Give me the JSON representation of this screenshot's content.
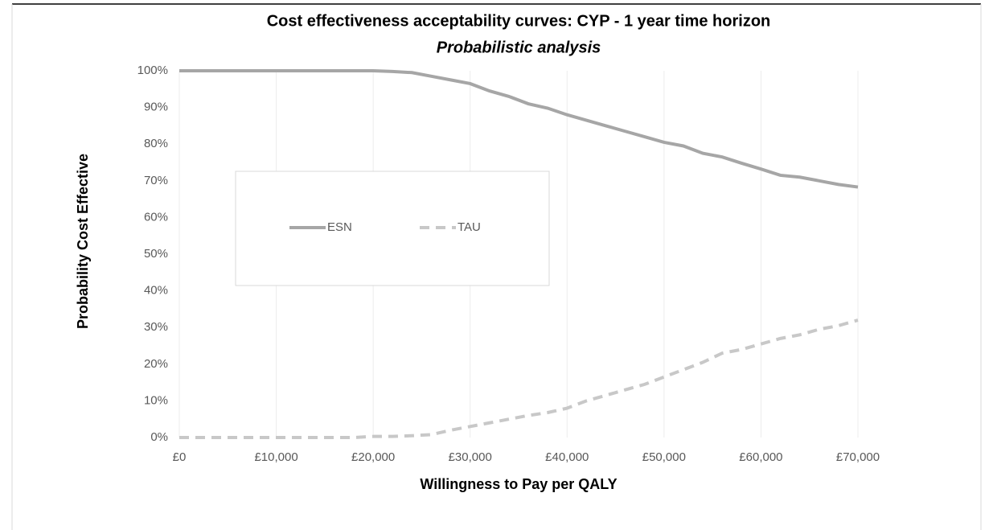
{
  "chart_data": {
    "type": "line",
    "title": "Cost effectiveness acceptability curves: CYP - 1 year time horizon",
    "subtitle": "Probabilistic analysis",
    "x_label": "Willingness to Pay per QALY",
    "y_label": "Probability Cost Effective",
    "x": [
      0,
      2000,
      4000,
      6000,
      8000,
      10000,
      12000,
      14000,
      16000,
      18000,
      20000,
      22000,
      24000,
      26000,
      28000,
      30000,
      32000,
      34000,
      36000,
      38000,
      40000,
      42000,
      44000,
      46000,
      48000,
      50000,
      52000,
      54000,
      56000,
      58000,
      60000,
      62000,
      64000,
      66000,
      68000,
      70000
    ],
    "series": [
      {
        "name": "ESN",
        "color": "#a6a6a6",
        "dash": false,
        "values": [
          100,
          100,
          100,
          100,
          100,
          100,
          100,
          100,
          100,
          100,
          100,
          99.8,
          99.5,
          98.5,
          97.5,
          96.5,
          94.5,
          93,
          91,
          89.8,
          88,
          86.5,
          85,
          83.5,
          82,
          80.5,
          79.5,
          77.5,
          76.5,
          74.8,
          73.2,
          71.5,
          71,
          70,
          69,
          68.3
        ]
      },
      {
        "name": "TAU",
        "color": "#c8c8c8",
        "dash": true,
        "values": [
          0,
          0,
          0,
          0,
          0,
          0,
          0,
          0,
          0,
          0,
          0.3,
          0.3,
          0.5,
          0.8,
          2,
          3,
          4,
          5,
          6,
          6.8,
          8,
          10,
          11.5,
          13,
          14.5,
          16.5,
          18.5,
          20.5,
          23,
          24,
          25.5,
          27,
          28,
          29.5,
          30.5,
          32
        ]
      }
    ],
    "xlim": [
      0,
      70000
    ],
    "xticks": [
      {
        "value": 0,
        "label": "£0"
      },
      {
        "value": 10000,
        "label": "£10,000"
      },
      {
        "value": 20000,
        "label": "£20,000"
      },
      {
        "value": 30000,
        "label": "£30,000"
      },
      {
        "value": 40000,
        "label": "£40,000"
      },
      {
        "value": 50000,
        "label": "£50,000"
      },
      {
        "value": 60000,
        "label": "£60,000"
      },
      {
        "value": 70000,
        "label": "£70,000"
      }
    ],
    "ylim": [
      0,
      100
    ],
    "yticks": [
      {
        "value": 0,
        "label": "0%"
      },
      {
        "value": 10,
        "label": "10%"
      },
      {
        "value": 20,
        "label": "20%"
      },
      {
        "value": 30,
        "label": "30%"
      },
      {
        "value": 40,
        "label": "40%"
      },
      {
        "value": 50,
        "label": "50%"
      },
      {
        "value": 60,
        "label": "60%"
      },
      {
        "value": 70,
        "label": "70%"
      },
      {
        "value": 80,
        "label": "80%"
      },
      {
        "value": 90,
        "label": "90%"
      },
      {
        "value": 100,
        "label": "100%"
      }
    ],
    "grid": "x"
  }
}
